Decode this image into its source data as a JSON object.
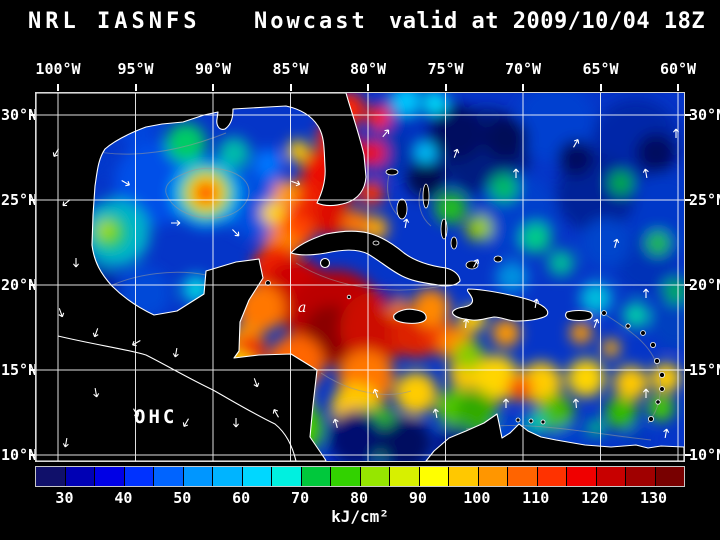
{
  "title": {
    "model": "NRL IASNFS",
    "product": "Nowcast",
    "valid": "valid at 2009/10/04 18Z"
  },
  "map": {
    "lon_labels": [
      "100°W",
      "95°W",
      "90°W",
      "85°W",
      "80°W",
      "75°W",
      "70°W",
      "65°W",
      "60°W"
    ],
    "lat_labels": [
      "30°N",
      "25°N",
      "20°N",
      "15°N",
      "10°N"
    ],
    "region_label": "OHC",
    "storm_marker": "a"
  },
  "colorbar": {
    "unit_label": "kJ/cm²",
    "range": [
      25,
      135
    ],
    "ticks": [
      30,
      40,
      50,
      60,
      70,
      80,
      90,
      100,
      110,
      120,
      130
    ],
    "colors": [
      "#10106a",
      "#0000b4",
      "#0000e6",
      "#0032ff",
      "#0064ff",
      "#0096ff",
      "#00b4ff",
      "#00d7ff",
      "#00f0e0",
      "#00c83c",
      "#32d200",
      "#96e600",
      "#d7f000",
      "#ffff00",
      "#ffc800",
      "#ff9600",
      "#ff6400",
      "#ff3200",
      "#f00000",
      "#c80000",
      "#a00000",
      "#780000"
    ]
  },
  "chart_data": {
    "type": "heatmap",
    "model": "NRL IASNFS",
    "product": "Nowcast",
    "valid_time": "2009/10/04 18Z",
    "variable": "OHC",
    "units": "kJ/cm²",
    "lon_ticks_degW": [
      100,
      95,
      90,
      85,
      80,
      75,
      70,
      65,
      60
    ],
    "lat_ticks_degN": [
      30,
      25,
      20,
      15,
      10
    ],
    "colorbar_ticks": [
      30,
      40,
      50,
      60,
      70,
      80,
      90,
      100,
      110,
      120,
      130
    ],
    "colorbar_range": [
      25,
      135
    ]
  }
}
